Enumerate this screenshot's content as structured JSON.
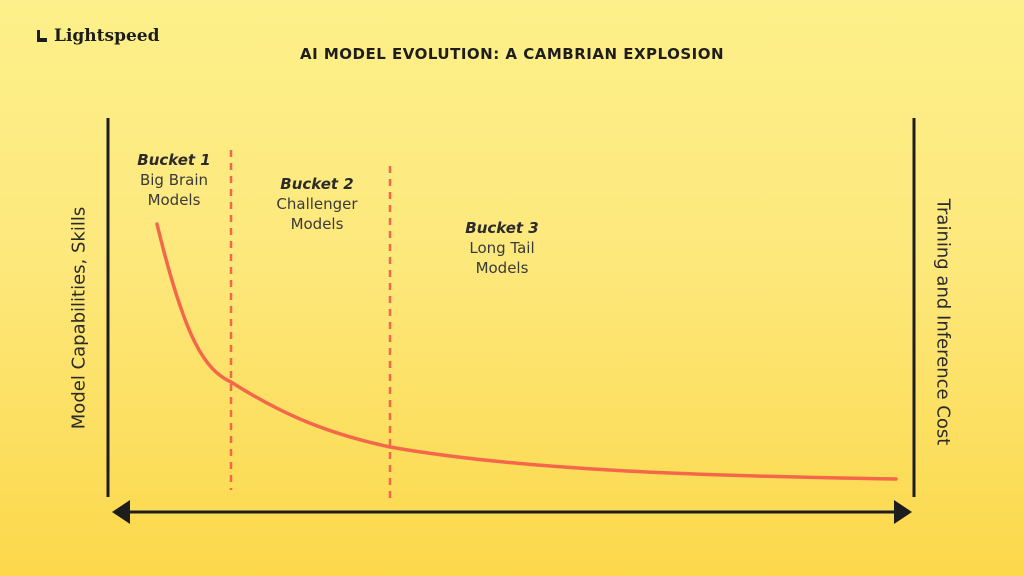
{
  "brand": {
    "name": "Lightspeed"
  },
  "title": "AI MODEL EVOLUTION: A CAMBRIAN EXPLOSION",
  "axes": {
    "left_label": "Model Capabilities, Skills",
    "right_label": "Training and Inference Cost"
  },
  "buckets": [
    {
      "name": "Bucket 1",
      "line1": "Big Brain",
      "line2": "Models"
    },
    {
      "name": "Bucket 2",
      "line1": "Challenger",
      "line2": "Models"
    },
    {
      "name": "Bucket 3",
      "line1": "Long Tail",
      "line2": "Models"
    }
  ],
  "colors": {
    "background_top": "#fdf08a",
    "background_bottom": "#fcd84a",
    "curve": "#f4674a",
    "divider": "#f4674a",
    "axis": "#1d1d1d"
  }
}
